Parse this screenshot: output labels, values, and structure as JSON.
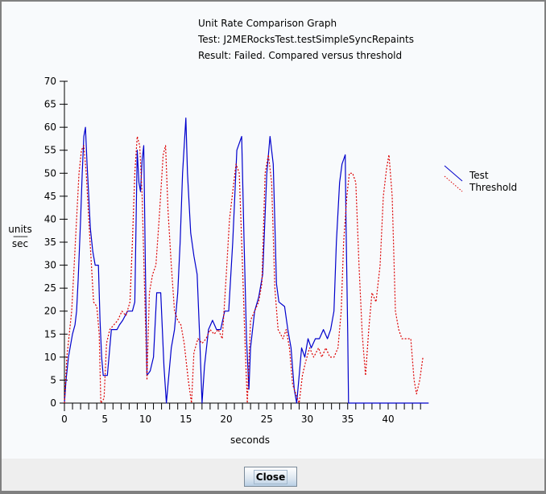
{
  "window": {
    "title_lines": [
      "Unit Rate Comparison Graph",
      "Test: J2MERocksTest.testSimpleSyncRepaints",
      "Result: Failed. Compared versus threshold"
    ],
    "close_button_label": "Close"
  },
  "axes": {
    "y_label_top": "units",
    "y_label_divider": "------",
    "y_label_bottom": "sec",
    "x_label": "seconds"
  },
  "legend": {
    "test_label": "Test",
    "threshold_label": "Threshold"
  },
  "colors": {
    "test": "#0000cc",
    "threshold": "#dd0000",
    "axis": "#000000",
    "background": "#f8fafc",
    "footer": "#eeeeee",
    "frame": "#808080"
  },
  "chart_data": {
    "type": "line",
    "title": "Unit Rate Comparison Graph",
    "subtitle": [
      "Test: J2MERocksTest.testSimpleSyncRepaints",
      "Result: Failed. Compared versus threshold"
    ],
    "xlabel": "seconds",
    "ylabel": "units / sec",
    "xlim": [
      0,
      45
    ],
    "ylim": [
      0,
      70
    ],
    "x_ticks": [
      0,
      5,
      10,
      15,
      20,
      25,
      30,
      35,
      40
    ],
    "y_ticks": [
      0,
      5,
      10,
      15,
      20,
      25,
      30,
      35,
      40,
      45,
      50,
      55,
      60,
      65,
      70
    ],
    "grid": false,
    "legend_position": "right",
    "series": [
      {
        "name": "Test",
        "style": "solid",
        "color": "#0000cc",
        "points": [
          [
            0.0,
            0
          ],
          [
            0.2,
            5
          ],
          [
            0.5,
            10
          ],
          [
            0.8,
            13
          ],
          [
            1.0,
            15
          ],
          [
            1.3,
            17
          ],
          [
            1.5,
            20
          ],
          [
            1.7,
            27
          ],
          [
            2.0,
            40
          ],
          [
            2.2,
            50
          ],
          [
            2.4,
            58
          ],
          [
            2.6,
            60
          ],
          [
            2.8,
            52
          ],
          [
            3.0,
            45
          ],
          [
            3.2,
            38
          ],
          [
            3.5,
            33
          ],
          [
            3.8,
            30
          ],
          [
            4.2,
            30
          ],
          [
            4.4,
            18
          ],
          [
            4.6,
            10
          ],
          [
            4.8,
            6
          ],
          [
            5.3,
            6
          ],
          [
            5.6,
            12
          ],
          [
            5.8,
            16
          ],
          [
            6.5,
            16
          ],
          [
            6.8,
            17
          ],
          [
            7.2,
            18
          ],
          [
            7.8,
            20
          ],
          [
            8.4,
            20
          ],
          [
            8.7,
            22
          ],
          [
            9.0,
            55
          ],
          [
            9.2,
            48
          ],
          [
            9.4,
            46
          ],
          [
            9.6,
            53
          ],
          [
            9.8,
            56
          ],
          [
            10.0,
            30
          ],
          [
            10.2,
            6
          ],
          [
            10.6,
            7
          ],
          [
            11.0,
            10
          ],
          [
            11.4,
            24
          ],
          [
            11.9,
            24
          ],
          [
            12.3,
            8
          ],
          [
            12.6,
            0
          ],
          [
            12.8,
            4
          ],
          [
            13.2,
            12
          ],
          [
            13.6,
            16
          ],
          [
            14.0,
            24
          ],
          [
            14.3,
            35
          ],
          [
            14.6,
            50
          ],
          [
            15.0,
            62
          ],
          [
            15.2,
            50
          ],
          [
            15.6,
            37
          ],
          [
            16.0,
            32
          ],
          [
            16.4,
            28
          ],
          [
            16.7,
            15
          ],
          [
            17.0,
            0
          ],
          [
            17.3,
            8
          ],
          [
            17.8,
            16
          ],
          [
            18.3,
            18
          ],
          [
            18.8,
            16
          ],
          [
            19.3,
            16
          ],
          [
            19.8,
            20
          ],
          [
            20.3,
            20
          ],
          [
            20.8,
            35
          ],
          [
            21.3,
            55
          ],
          [
            21.9,
            58
          ],
          [
            22.2,
            35
          ],
          [
            22.5,
            14
          ],
          [
            22.8,
            3
          ],
          [
            23.0,
            12
          ],
          [
            23.5,
            20
          ],
          [
            24.0,
            23
          ],
          [
            24.5,
            28
          ],
          [
            25.0,
            50
          ],
          [
            25.4,
            58
          ],
          [
            25.8,
            52
          ],
          [
            26.2,
            26
          ],
          [
            26.5,
            22
          ],
          [
            27.2,
            21
          ],
          [
            27.6,
            16
          ],
          [
            28.0,
            12
          ],
          [
            28.4,
            3
          ],
          [
            28.7,
            0
          ],
          [
            29.0,
            6
          ],
          [
            29.3,
            12
          ],
          [
            29.7,
            10
          ],
          [
            30.1,
            14
          ],
          [
            30.5,
            12
          ],
          [
            31.0,
            14
          ],
          [
            31.5,
            14
          ],
          [
            32.0,
            16
          ],
          [
            32.5,
            14
          ],
          [
            32.9,
            16
          ],
          [
            33.3,
            20
          ],
          [
            33.6,
            35
          ],
          [
            34.0,
            48
          ],
          [
            34.3,
            52
          ],
          [
            34.7,
            54
          ],
          [
            34.8,
            39
          ],
          [
            35.0,
            15
          ],
          [
            35.1,
            0
          ],
          [
            45.0,
            0
          ]
        ]
      },
      {
        "name": "Threshold",
        "style": "dotted",
        "color": "#dd0000",
        "points": [
          [
            0.0,
            0
          ],
          [
            0.3,
            10
          ],
          [
            0.6,
            15
          ],
          [
            0.9,
            20
          ],
          [
            1.2,
            30
          ],
          [
            1.5,
            40
          ],
          [
            1.8,
            50
          ],
          [
            2.1,
            55
          ],
          [
            2.4,
            56
          ],
          [
            2.7,
            50
          ],
          [
            3.0,
            40
          ],
          [
            3.4,
            28
          ],
          [
            3.6,
            22
          ],
          [
            4.0,
            21
          ],
          [
            4.3,
            15
          ],
          [
            4.5,
            0
          ],
          [
            4.9,
            1
          ],
          [
            5.2,
            13
          ],
          [
            5.6,
            16
          ],
          [
            6.1,
            17
          ],
          [
            6.6,
            18
          ],
          [
            7.1,
            20
          ],
          [
            7.6,
            19
          ],
          [
            8.1,
            22
          ],
          [
            8.4,
            35
          ],
          [
            8.7,
            50
          ],
          [
            9.0,
            58
          ],
          [
            9.3,
            56
          ],
          [
            9.6,
            45
          ],
          [
            9.9,
            25
          ],
          [
            10.2,
            5
          ],
          [
            10.5,
            24
          ],
          [
            10.9,
            28
          ],
          [
            11.3,
            30
          ],
          [
            11.7,
            40
          ],
          [
            12.2,
            54
          ],
          [
            12.5,
            56
          ],
          [
            12.8,
            42
          ],
          [
            13.2,
            30
          ],
          [
            13.6,
            20
          ],
          [
            14.0,
            18
          ],
          [
            14.4,
            17
          ],
          [
            14.8,
            13
          ],
          [
            15.3,
            5
          ],
          [
            15.7,
            0
          ],
          [
            16.0,
            11
          ],
          [
            16.5,
            14
          ],
          [
            17.0,
            13
          ],
          [
            17.5,
            14
          ],
          [
            18.0,
            16
          ],
          [
            18.5,
            15
          ],
          [
            19.0,
            16
          ],
          [
            19.5,
            14
          ],
          [
            20.0,
            28
          ],
          [
            20.4,
            40
          ],
          [
            20.8,
            46
          ],
          [
            21.2,
            52
          ],
          [
            21.6,
            50
          ],
          [
            22.0,
            30
          ],
          [
            22.3,
            14
          ],
          [
            22.6,
            0
          ],
          [
            23.0,
            18
          ],
          [
            23.5,
            20
          ],
          [
            24.0,
            22
          ],
          [
            24.4,
            26
          ],
          [
            24.8,
            50
          ],
          [
            25.2,
            54
          ],
          [
            25.6,
            48
          ],
          [
            26.0,
            25
          ],
          [
            26.4,
            16
          ],
          [
            27.0,
            14
          ],
          [
            27.4,
            16
          ],
          [
            27.8,
            12
          ],
          [
            28.2,
            4
          ],
          [
            28.6,
            2
          ],
          [
            29.0,
            0
          ],
          [
            29.4,
            6
          ],
          [
            29.8,
            9
          ],
          [
            30.3,
            12
          ],
          [
            30.8,
            10
          ],
          [
            31.4,
            12
          ],
          [
            31.8,
            10
          ],
          [
            32.3,
            12
          ],
          [
            32.8,
            10
          ],
          [
            33.3,
            10
          ],
          [
            33.8,
            12
          ],
          [
            34.2,
            20
          ],
          [
            34.5,
            35
          ],
          [
            34.9,
            45
          ],
          [
            35.2,
            50
          ],
          [
            35.6,
            50
          ],
          [
            36.0,
            48
          ],
          [
            36.4,
            30
          ],
          [
            36.8,
            15
          ],
          [
            37.2,
            6
          ],
          [
            37.6,
            16
          ],
          [
            38.0,
            24
          ],
          [
            38.5,
            22
          ],
          [
            39.0,
            30
          ],
          [
            39.4,
            45
          ],
          [
            39.8,
            51
          ],
          [
            40.1,
            54
          ],
          [
            40.5,
            45
          ],
          [
            40.9,
            20
          ],
          [
            41.3,
            16
          ],
          [
            41.7,
            14
          ],
          [
            42.2,
            14
          ],
          [
            42.8,
            14
          ],
          [
            43.2,
            5
          ],
          [
            43.5,
            2
          ],
          [
            43.9,
            5
          ],
          [
            44.3,
            10
          ]
        ]
      }
    ]
  }
}
